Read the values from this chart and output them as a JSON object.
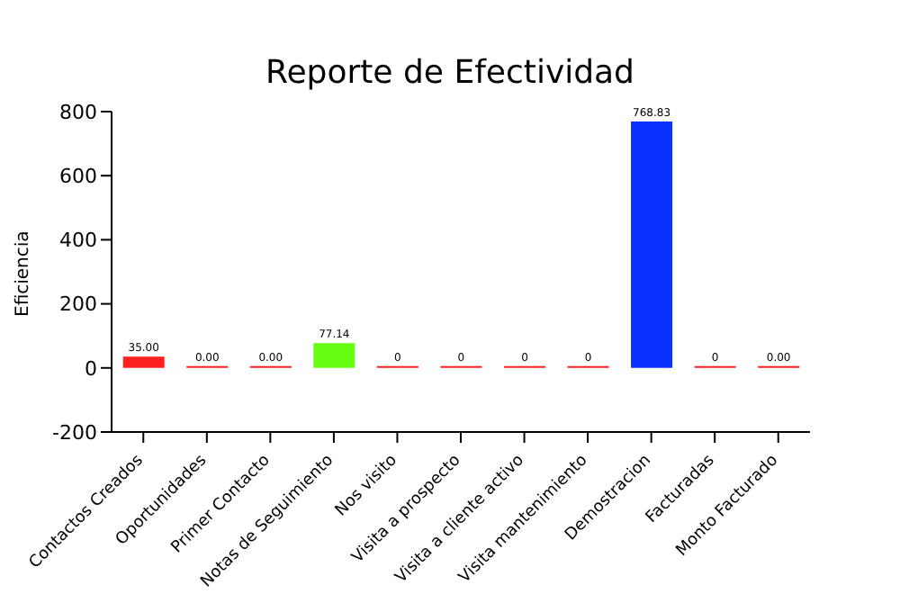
{
  "chart_data": {
    "type": "bar",
    "title": "Reporte de Efectividad",
    "ylabel": "Eficiencia",
    "categories": [
      "Contactos Creados",
      "Oportunidades",
      "Primer Contacto",
      "Notas de Seguimiento",
      "Nos visito",
      "Visita a prospecto",
      "Visita a cliente activo",
      "Visita mantenimiento",
      "Demostracion",
      "Facturadas",
      "Monto Facturado"
    ],
    "values": [
      35.0,
      0,
      0,
      77.14,
      0,
      0,
      0,
      0,
      768.83,
      0,
      0
    ],
    "colors": [
      "#ff2020",
      "#ff2020",
      "#ff2020",
      "#66ff11",
      "#ff2020",
      "#ff2020",
      "#ff2020",
      "#ff2020",
      "#0a32ff",
      "#ff2020",
      "#ff2020"
    ],
    "value_labels": [
      "35.00",
      "0.00",
      "0.00",
      "77.14",
      "0",
      "0",
      "0",
      "0",
      "768.83",
      "0",
      "0.00"
    ],
    "ylim": [
      -200,
      800
    ],
    "yticks": [
      -200,
      0,
      200,
      400,
      600,
      800
    ]
  }
}
